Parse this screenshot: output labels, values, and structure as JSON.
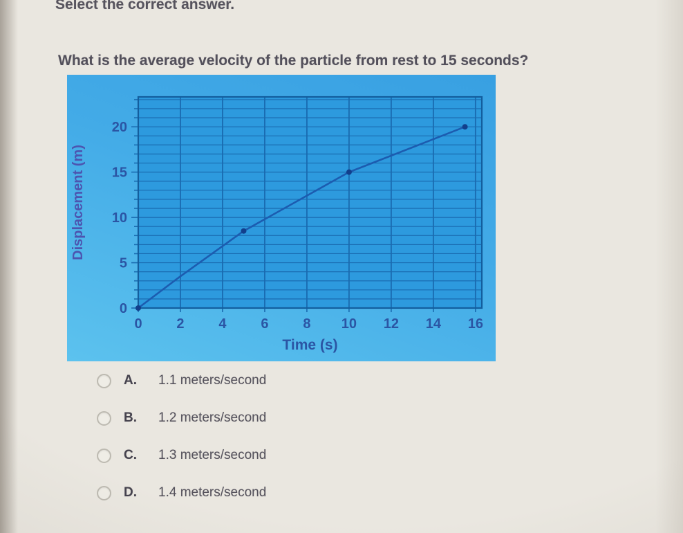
{
  "page": {
    "background": "#eae7e0",
    "instruction": "Select the correct answer.",
    "question": "What is the average velocity of the particle from rest to 15 seconds?"
  },
  "chart_data": {
    "type": "line",
    "title": "",
    "xlabel": "Time (s)",
    "ylabel": "Displacement (m)",
    "xlim": [
      0,
      16.3
    ],
    "ylim": [
      0,
      23.3
    ],
    "x_ticks": [
      0,
      2,
      4,
      6,
      8,
      10,
      12,
      14,
      16
    ],
    "y_ticks": [
      0,
      5,
      10,
      15,
      20
    ],
    "x_grid_step": 2,
    "y_grid_step": 1,
    "grid": true,
    "legend": false,
    "series": [
      {
        "name": "displacement",
        "points": [
          [
            0,
            0
          ],
          [
            2,
            3.5
          ],
          [
            5,
            8.5
          ],
          [
            10,
            15
          ],
          [
            15.5,
            20
          ]
        ],
        "marker_points": [
          [
            0,
            0
          ],
          [
            5,
            8.5
          ],
          [
            10,
            15
          ],
          [
            15.5,
            20
          ]
        ]
      }
    ],
    "colors": {
      "panel_top": "#38a0e2",
      "panel_bottom": "#5cc2ee",
      "plot_bg": "#2d9ade",
      "grid": "#1a6bb0",
      "border": "#135e9e",
      "line": "#1c5cb0",
      "marker": "#123f8c",
      "tick_label": "#2b55a4",
      "axis_label": "#4c55b0"
    }
  },
  "options": [
    {
      "letter": "A.",
      "text": "1.1 meters/second",
      "selected": false
    },
    {
      "letter": "B.",
      "text": "1.2 meters/second",
      "selected": false
    },
    {
      "letter": "C.",
      "text": "1.3 meters/second",
      "selected": false
    },
    {
      "letter": "D.",
      "text": "1.4 meters/second",
      "selected": false
    }
  ]
}
